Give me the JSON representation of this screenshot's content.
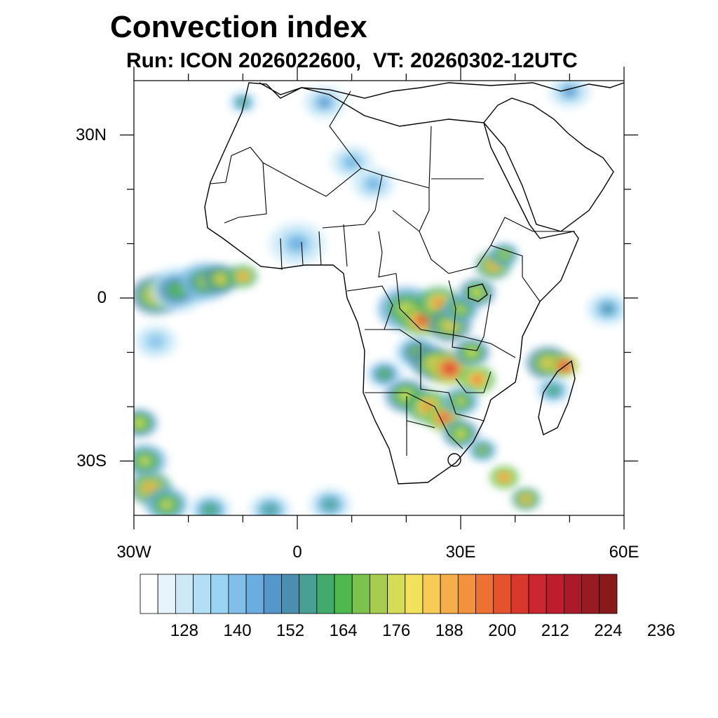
{
  "title": "Convection index",
  "subtitle": "Run: ICON 2026022600,  VT: 20260302-12UTC",
  "map": {
    "projection": "cylindrical",
    "lon_range": [
      -30,
      60
    ],
    "lat_range": [
      -40,
      40
    ],
    "x_tick_labels": [
      {
        "lon": -30,
        "label": "30W"
      },
      {
        "lon": 0,
        "label": "0"
      },
      {
        "lon": 30,
        "label": "30E"
      },
      {
        "lon": 60,
        "label": "60E"
      }
    ],
    "y_tick_labels": [
      {
        "lat": 30,
        "label": "30N"
      },
      {
        "lat": 0,
        "label": "0"
      },
      {
        "lat": -30,
        "label": "30S"
      }
    ],
    "minor_lon_ticks": [
      -20,
      -10,
      10,
      20,
      40,
      50
    ],
    "minor_lat_ticks": [
      20,
      10,
      -10,
      -20
    ]
  },
  "colorbar": {
    "colors": [
      "#ffffff",
      "#e8f4fb",
      "#cde9f7",
      "#b3def5",
      "#9ad3f3",
      "#82bfe8",
      "#6aaedf",
      "#5596cb",
      "#4a8fb0",
      "#47a093",
      "#42ab6c",
      "#4fb84e",
      "#7cc34d",
      "#a8cd4e",
      "#d6dc55",
      "#f2e25b",
      "#f7cb55",
      "#f6ae4a",
      "#f3923e",
      "#ee7134",
      "#e5522e",
      "#da372c",
      "#cc2630",
      "#bd1d2d",
      "#aa1a2a",
      "#981a22",
      "#881a1c"
    ],
    "labels": [
      "128",
      "140",
      "152",
      "164",
      "176",
      "188",
      "200",
      "212",
      "224",
      "236"
    ]
  },
  "field_patches": [
    {
      "lon": -26,
      "lat": 0.5,
      "r": 3.5,
      "level": 16
    },
    {
      "lon": -22,
      "lat": 1.5,
      "r": 4,
      "level": 11
    },
    {
      "lon": -17,
      "lat": 3,
      "r": 3.5,
      "level": 13
    },
    {
      "lon": -14,
      "lat": 3.5,
      "r": 2.5,
      "level": 16
    },
    {
      "lon": -10,
      "lat": 4,
      "r": 2,
      "level": 18
    },
    {
      "lon": 20,
      "lat": -2,
      "r": 4,
      "level": 14
    },
    {
      "lon": 23,
      "lat": -4,
      "r": 3,
      "level": 20
    },
    {
      "lon": 26,
      "lat": -1,
      "r": 3,
      "level": 18
    },
    {
      "lon": 28,
      "lat": -5,
      "r": 3,
      "level": 16
    },
    {
      "lon": 30,
      "lat": -2,
      "r": 2.5,
      "level": 14
    },
    {
      "lon": 33,
      "lat": 1,
      "r": 2.5,
      "level": 15
    },
    {
      "lon": 36,
      "lat": 6,
      "r": 2.5,
      "level": 17
    },
    {
      "lon": 38,
      "lat": 8,
      "r": 2,
      "level": 14
    },
    {
      "lon": 22,
      "lat": -10,
      "r": 3,
      "level": 12
    },
    {
      "lon": 25,
      "lat": -12,
      "r": 3,
      "level": 16
    },
    {
      "lon": 28,
      "lat": -13,
      "r": 3,
      "level": 21
    },
    {
      "lon": 32,
      "lat": -10,
      "r": 2.5,
      "level": 15
    },
    {
      "lon": 33,
      "lat": -15,
      "r": 2.5,
      "level": 19
    },
    {
      "lon": 16,
      "lat": -14,
      "r": 2.5,
      "level": 11
    },
    {
      "lon": 20,
      "lat": -18,
      "r": 3,
      "level": 15
    },
    {
      "lon": 24,
      "lat": -20,
      "r": 3,
      "level": 18
    },
    {
      "lon": 27,
      "lat": -22,
      "r": 2.5,
      "level": 20
    },
    {
      "lon": 30,
      "lat": -19,
      "r": 2.5,
      "level": 14
    },
    {
      "lon": 30,
      "lat": -25,
      "r": 2.5,
      "level": 15
    },
    {
      "lon": 34,
      "lat": -28,
      "r": 2,
      "level": 13
    },
    {
      "lon": 38,
      "lat": -33,
      "r": 2,
      "level": 19
    },
    {
      "lon": 42,
      "lat": -37,
      "r": 2,
      "level": 17
    },
    {
      "lon": 46,
      "lat": -12,
      "r": 3,
      "level": 16
    },
    {
      "lon": 49,
      "lat": -12.5,
      "r": 2,
      "level": 21
    },
    {
      "lon": 47,
      "lat": -17,
      "r": 2.5,
      "level": 10
    },
    {
      "lon": 57,
      "lat": -2,
      "r": 3,
      "level": 8
    },
    {
      "lon": -29,
      "lat": -23,
      "r": 2.5,
      "level": 15
    },
    {
      "lon": -28,
      "lat": -30,
      "r": 3,
      "level": 14
    },
    {
      "lon": -27,
      "lat": -35,
      "r": 3,
      "level": 17
    },
    {
      "lon": -24,
      "lat": -38,
      "r": 3,
      "level": 14
    },
    {
      "lon": -16,
      "lat": -39,
      "r": 3,
      "level": 10
    },
    {
      "lon": -5,
      "lat": -39,
      "r": 3,
      "level": 9
    },
    {
      "lon": 6,
      "lat": -38,
      "r": 3,
      "level": 9
    },
    {
      "lon": -10,
      "lat": 36,
      "r": 2,
      "level": 10
    },
    {
      "lon": 5,
      "lat": 36,
      "r": 3,
      "level": 7
    },
    {
      "lon": 10,
      "lat": 25,
      "r": 3,
      "level": 6
    },
    {
      "lon": 14,
      "lat": 21,
      "r": 3,
      "level": 6
    },
    {
      "lon": 0,
      "lat": 10,
      "r": 4,
      "level": 6
    },
    {
      "lon": 50,
      "lat": 38,
      "r": 3,
      "level": 7
    },
    {
      "lon": -26,
      "lat": -8,
      "r": 3,
      "level": 5
    }
  ]
}
